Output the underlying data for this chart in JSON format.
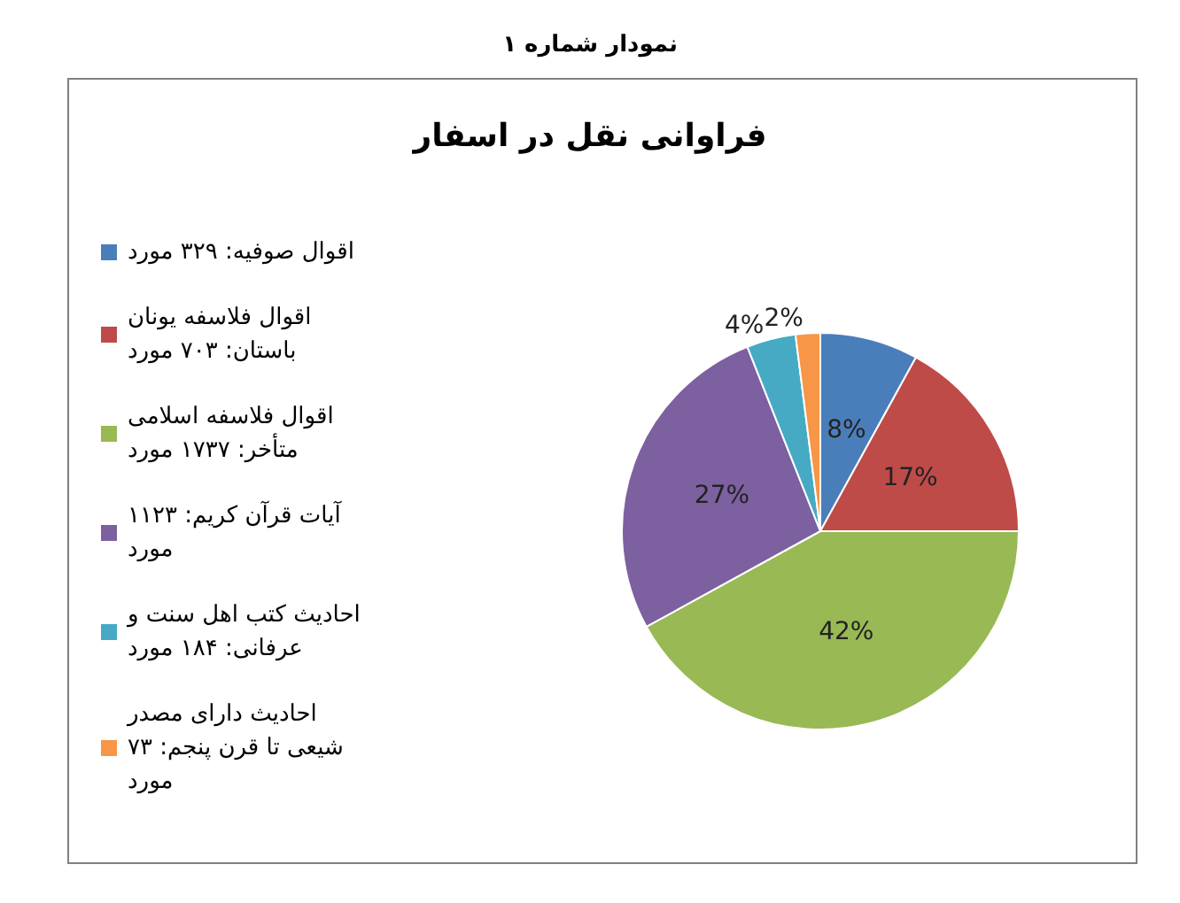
{
  "chart_data": {
    "type": "pie",
    "title": "نمودار شماره ۱",
    "subtitle": "فراوانی نقل در اسفار",
    "categories": [
      "اقوال صوفیه: ۳۲۹ مورد",
      "اقوال فلاسفه یونان باستان: ۷۰۳ مورد",
      "اقوال فلاسفه اسلامی متأخر: ۱۷۳۷ مورد",
      "آیات قرآن کریم: ۱۱۲۳ مورد",
      "احادیث کتب اهل سنت و عرفانی: ۱۸۴ مورد",
      "احادیث دارای مصدر شیعی تا قرن پنجم: ۷۳ مورد"
    ],
    "values": [
      8,
      17,
      42,
      27,
      4,
      2
    ],
    "value_labels": [
      "8%",
      "17%",
      "42%",
      "27%",
      "4%",
      "2%"
    ],
    "colors": [
      "#4a7ebb",
      "#be4b48",
      "#98b954",
      "#7d60a0",
      "#46aac5",
      "#f79646"
    ],
    "legend": "left"
  }
}
